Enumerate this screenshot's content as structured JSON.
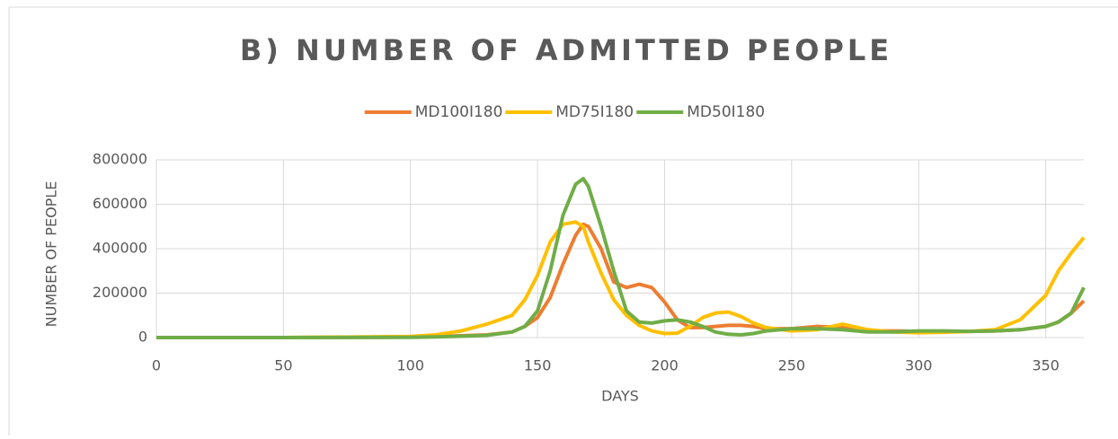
{
  "chart_data": {
    "type": "line",
    "title": "B) NUMBER OF ADMITTED PEOPLE",
    "x_label": "DAYS",
    "y_label": "NUMBER OF PEOPLE",
    "x": [
      0,
      50,
      100,
      110,
      120,
      130,
      140,
      145,
      150,
      155,
      160,
      165,
      168,
      170,
      175,
      180,
      185,
      190,
      195,
      200,
      205,
      210,
      215,
      220,
      225,
      230,
      235,
      240,
      250,
      260,
      270,
      280,
      290,
      300,
      310,
      320,
      330,
      340,
      350,
      355,
      360,
      365
    ],
    "series": [
      {
        "name": "MD100I180",
        "color": "#ed7d31",
        "values": [
          0,
          0,
          2000,
          5000,
          8000,
          12000,
          25000,
          50000,
          90000,
          180000,
          330000,
          460000,
          510000,
          500000,
          400000,
          250000,
          225000,
          240000,
          225000,
          160000,
          80000,
          45000,
          45000,
          50000,
          55000,
          55000,
          50000,
          40000,
          40000,
          50000,
          45000,
          30000,
          30000,
          28000,
          28000,
          28000,
          30000,
          35000,
          50000,
          70000,
          110000,
          165000
        ]
      },
      {
        "name": "MD75I180",
        "color": "#ffc000",
        "values": [
          0,
          0,
          5000,
          12000,
          30000,
          60000,
          100000,
          170000,
          280000,
          430000,
          510000,
          520000,
          500000,
          430000,
          290000,
          170000,
          100000,
          55000,
          30000,
          18000,
          20000,
          50000,
          90000,
          110000,
          115000,
          95000,
          65000,
          45000,
          30000,
          35000,
          60000,
          35000,
          25000,
          22000,
          24000,
          28000,
          35000,
          80000,
          190000,
          300000,
          380000,
          450000
        ]
      },
      {
        "name": "MD50I180",
        "color": "#70ad47",
        "values": [
          0,
          0,
          1000,
          3000,
          6000,
          10000,
          25000,
          50000,
          120000,
          300000,
          550000,
          690000,
          715000,
          680000,
          500000,
          300000,
          120000,
          70000,
          65000,
          75000,
          80000,
          70000,
          50000,
          25000,
          15000,
          12000,
          18000,
          30000,
          40000,
          40000,
          35000,
          25000,
          25000,
          30000,
          30000,
          28000,
          30000,
          35000,
          50000,
          70000,
          110000,
          225000
        ]
      }
    ],
    "xlim": [
      0,
      365
    ],
    "xticks": [
      0,
      50,
      100,
      150,
      200,
      250,
      300,
      350
    ],
    "ylim": [
      0,
      800000
    ],
    "yticks": [
      0,
      200000,
      400000,
      600000,
      800000
    ],
    "grid": true,
    "legend": "top"
  }
}
